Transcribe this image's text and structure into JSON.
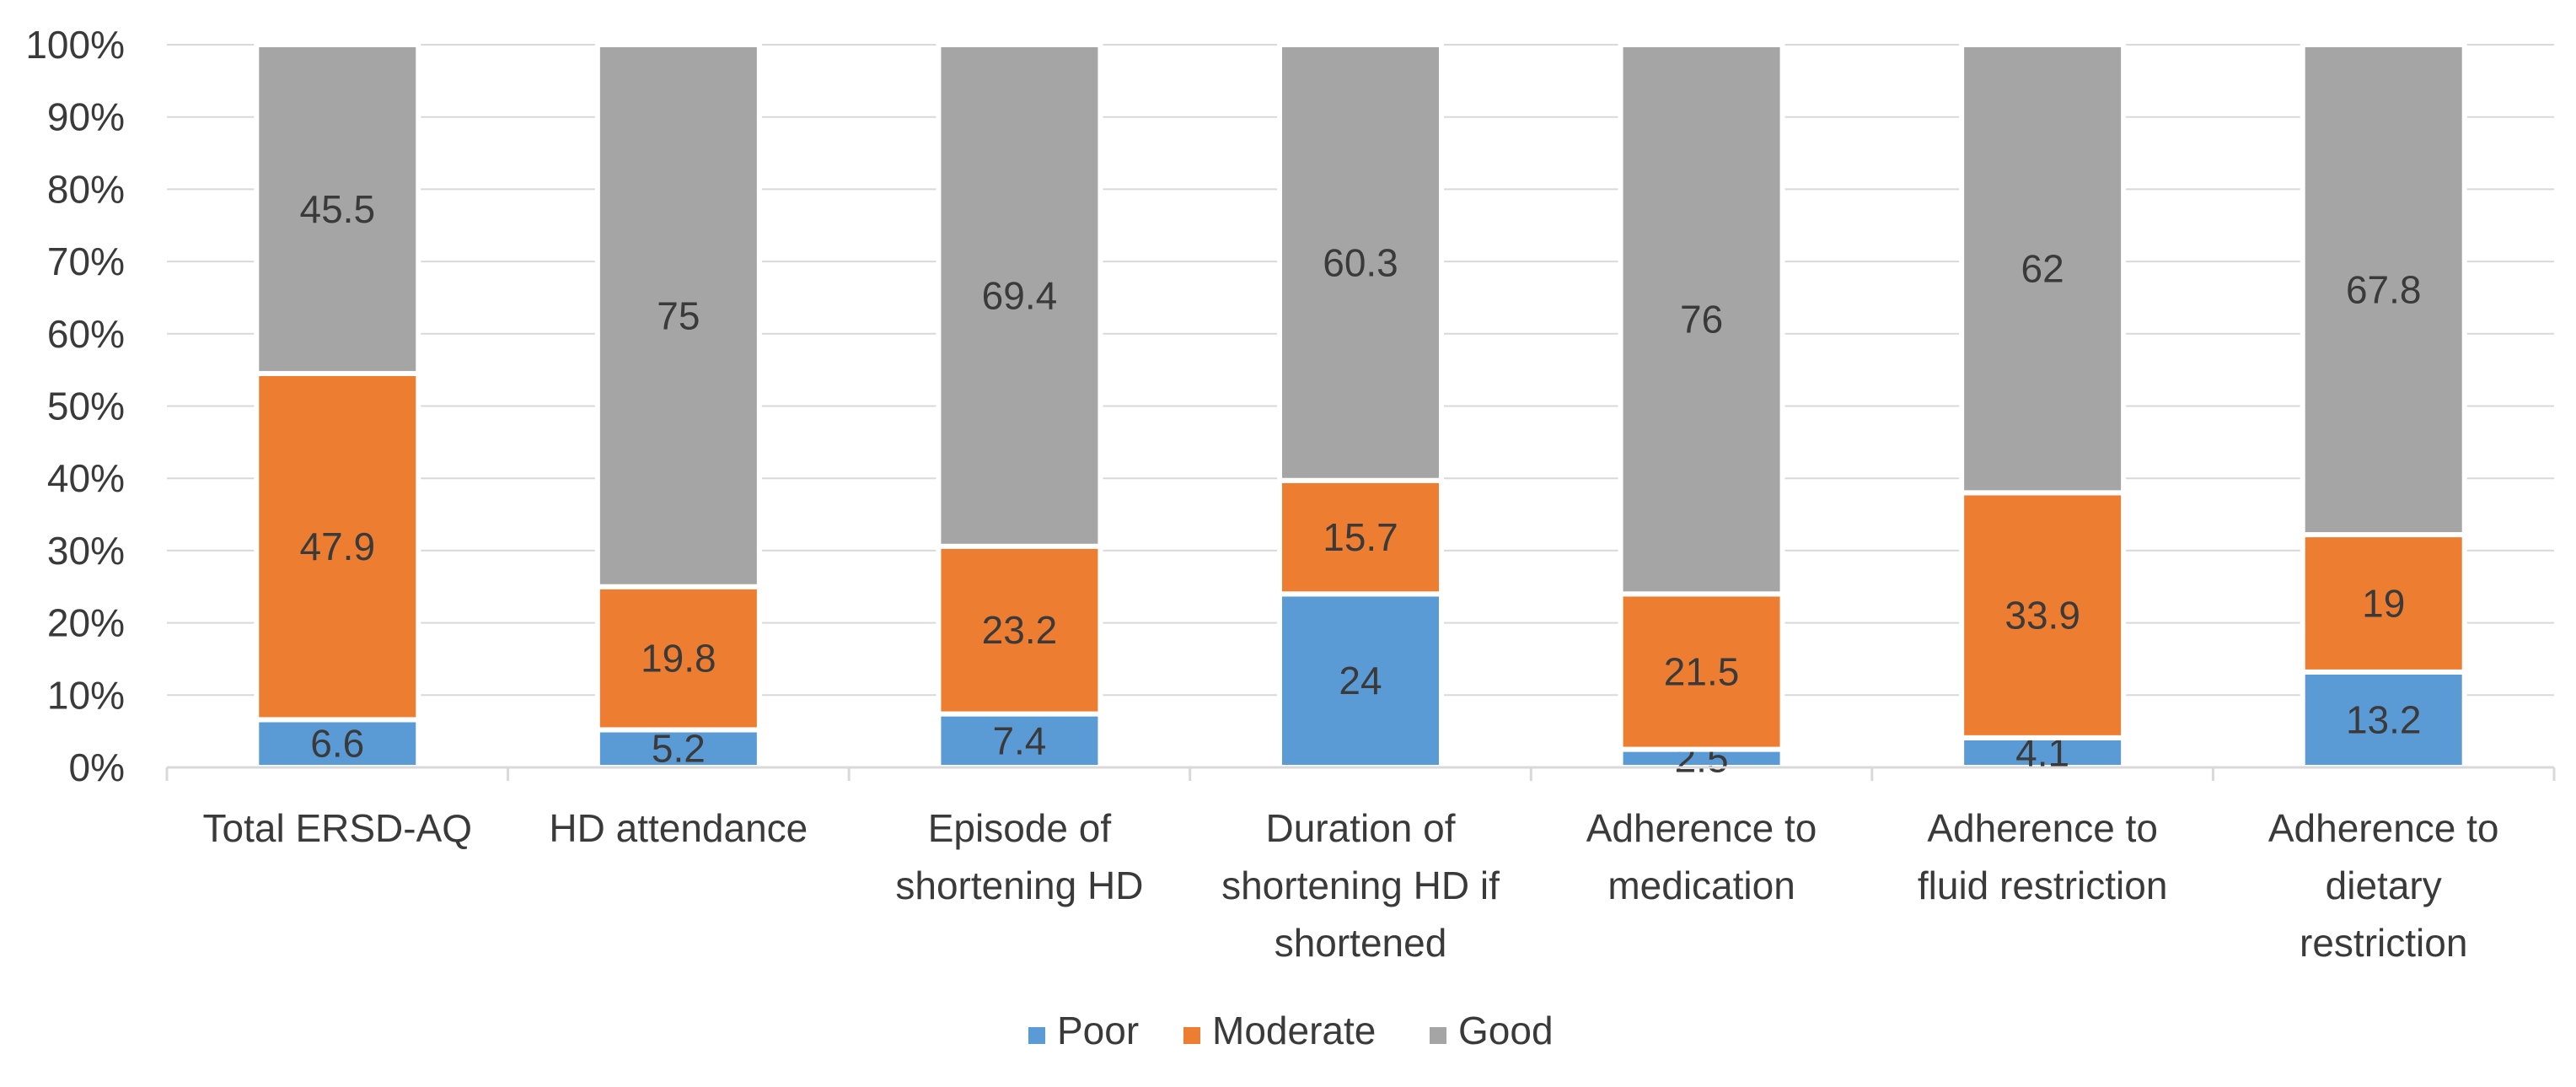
{
  "chart_data": {
    "type": "bar",
    "stacked": true,
    "percent": true,
    "categories": [
      [
        "Total ERSD-AQ"
      ],
      [
        "HD attendance"
      ],
      [
        "Episode of",
        "shortening HD"
      ],
      [
        "Duration of",
        "shortening HD if",
        "shortened"
      ],
      [
        "Adherence to",
        "medication"
      ],
      [
        "Adherence to",
        "fluid restriction"
      ],
      [
        "Adherence to",
        "dietary",
        "restriction"
      ]
    ],
    "series": [
      {
        "name": "Poor",
        "color": "#5b9bd5",
        "values": [
          6.6,
          5.2,
          7.4,
          24,
          2.5,
          4.1,
          13.2
        ]
      },
      {
        "name": "Moderate",
        "color": "#ed7d31",
        "values": [
          47.9,
          19.8,
          23.2,
          15.7,
          21.5,
          33.9,
          19
        ]
      },
      {
        "name": "Good",
        "color": "#a5a5a5",
        "values": [
          45.5,
          75,
          69.4,
          60.3,
          76,
          62,
          67.8
        ]
      }
    ],
    "y_ticks": [
      "0%",
      "10%",
      "20%",
      "30%",
      "40%",
      "50%",
      "60%",
      "70%",
      "80%",
      "90%",
      "100%"
    ],
    "ylim": [
      0,
      100
    ],
    "grid": true,
    "legend_position": "bottom",
    "title": "",
    "xlabel": "",
    "ylabel": ""
  }
}
